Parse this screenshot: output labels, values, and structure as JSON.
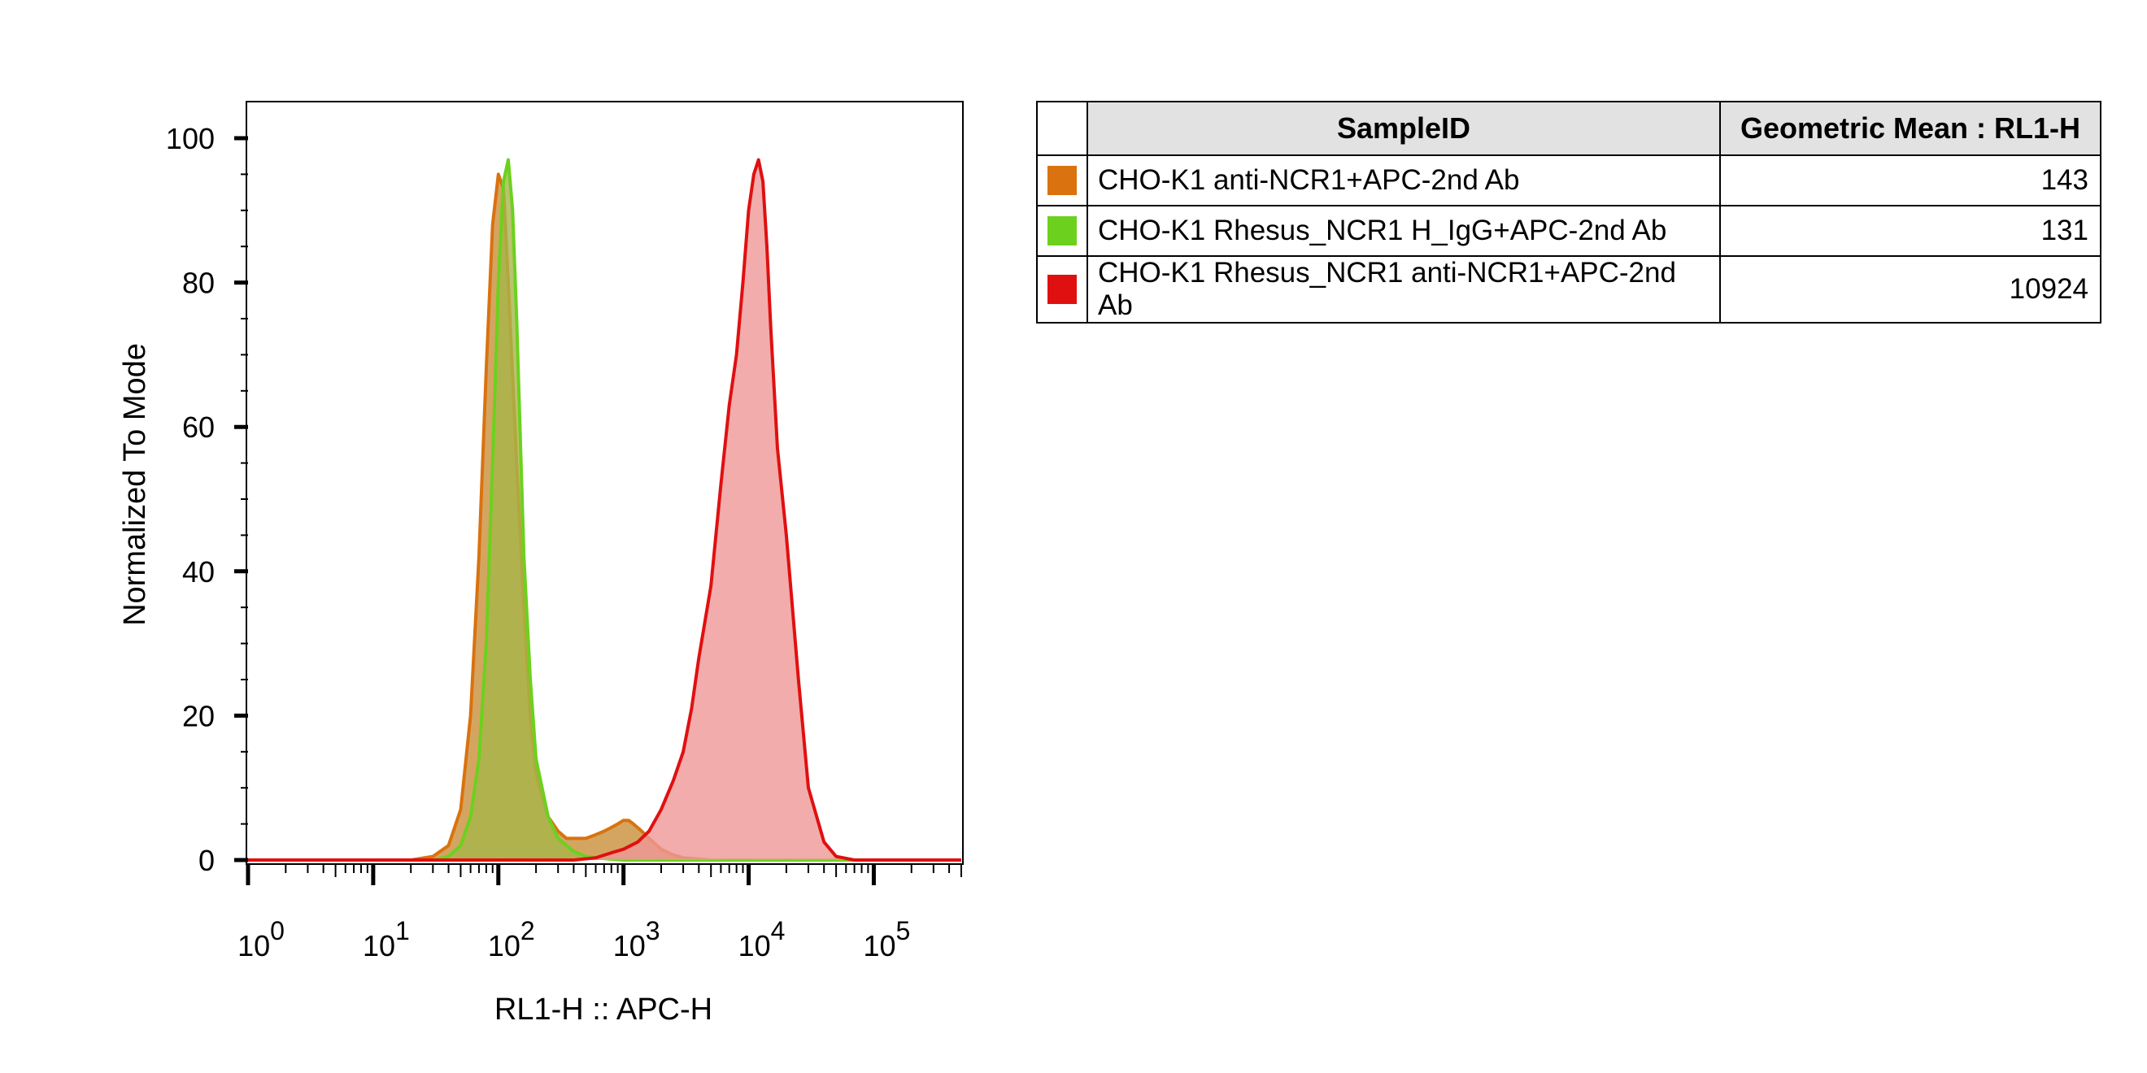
{
  "chart_data": {
    "type": "area",
    "x_scale": "log",
    "xlabel": "RL1-H :: APC-H",
    "ylabel": "Normalized To Mode",
    "xlim": [
      1,
      500000
    ],
    "ylim": [
      0,
      100
    ],
    "y_ticks": [
      0,
      20,
      40,
      60,
      80,
      100
    ],
    "x_tick_labels": [
      {
        "base": "10",
        "exp": "0"
      },
      {
        "base": "10",
        "exp": "1"
      },
      {
        "base": "10",
        "exp": "2"
      },
      {
        "base": "10",
        "exp": "3"
      },
      {
        "base": "10",
        "exp": "4"
      },
      {
        "base": "10",
        "exp": "5"
      }
    ],
    "grid": false,
    "series": [
      {
        "name": "CHO-K1 anti-NCR1+APC-2nd Ab",
        "color": "#d9720f",
        "fill": "#c98f3a",
        "x": [
          1,
          20,
          30,
          40,
          50,
          60,
          70,
          80,
          90,
          100,
          110,
          120,
          140,
          160,
          180,
          200,
          250,
          300,
          350,
          400,
          500,
          600,
          700,
          800,
          900,
          1000,
          1100,
          1200,
          1400,
          1600,
          2000,
          2500,
          3000,
          5000,
          100000,
          500000
        ],
        "y": [
          0,
          0,
          0.5,
          2,
          7,
          20,
          42,
          68,
          88,
          95,
          93,
          80,
          55,
          35,
          20,
          12,
          6,
          4,
          3,
          3,
          3,
          3.5,
          4,
          4.5,
          5,
          5.5,
          5.5,
          5,
          4,
          3,
          1.5,
          0.7,
          0.3,
          0,
          0,
          0
        ]
      },
      {
        "name": "CHO-K1 Rhesus_NCR1 H_IgG+APC-2nd Ab",
        "color": "#6cd11e",
        "fill": "#a6b54a",
        "x": [
          1,
          30,
          40,
          50,
          60,
          70,
          80,
          90,
          100,
          110,
          120,
          130,
          140,
          150,
          160,
          180,
          200,
          250,
          300,
          400,
          500,
          700,
          1000,
          2000,
          500000
        ],
        "y": [
          0,
          0,
          0.5,
          2,
          6,
          14,
          30,
          55,
          80,
          94,
          97,
          90,
          75,
          58,
          42,
          25,
          14,
          6,
          3,
          1.2,
          0.5,
          0.2,
          0,
          0,
          0
        ]
      },
      {
        "name": "CHO-K1 Rhesus_NCR1 anti-NCR1+APC-2nd Ab",
        "color": "#e01010",
        "fill": "#ef9797",
        "x": [
          1,
          400,
          600,
          800,
          1000,
          1300,
          1600,
          2000,
          2500,
          3000,
          3500,
          4000,
          5000,
          6000,
          7000,
          8000,
          9000,
          10000,
          11000,
          12000,
          13000,
          14000,
          15000,
          17000,
          20000,
          25000,
          30000,
          40000,
          50000,
          70000,
          500000
        ],
        "y": [
          0,
          0,
          0.3,
          1,
          1.5,
          2.5,
          4,
          7,
          11,
          15,
          21,
          28,
          38,
          52,
          63,
          70,
          80,
          90,
          95,
          97,
          94,
          85,
          74,
          57,
          45,
          25,
          10,
          2.5,
          0.5,
          0,
          0
        ]
      }
    ]
  },
  "legend_table": {
    "header_sample": "SampleID",
    "header_mean": "Geometric Mean : RL1-H",
    "rows": [
      {
        "color": "#d9720f",
        "sample": "CHO-K1 anti-NCR1+APC-2nd Ab",
        "mean": "143"
      },
      {
        "color": "#6cd11e",
        "sample": "CHO-K1 Rhesus_NCR1 H_IgG+APC-2nd Ab",
        "mean": "131"
      },
      {
        "color": "#e01010",
        "sample": "CHO-K1 Rhesus_NCR1 anti-NCR1+APC-2nd Ab",
        "mean": "10924"
      }
    ]
  }
}
